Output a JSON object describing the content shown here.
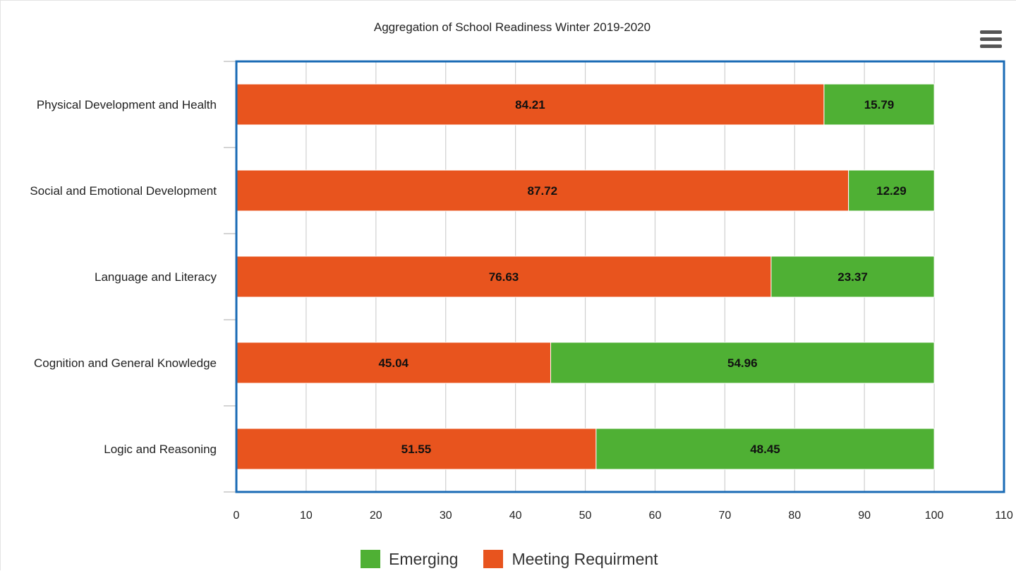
{
  "menu": {
    "icon": "hamburger-menu-icon"
  },
  "chart_data": {
    "type": "bar",
    "orientation": "horizontal",
    "stacked": true,
    "title": "Aggregation of School Readiness Winter 2019-2020",
    "categories": [
      "Physical Development and Health",
      "Social and Emotional Development",
      "Language and Literacy",
      "Cognition and General Knowledge",
      "Logic and Reasoning"
    ],
    "series": [
      {
        "name": "Meeting Requirment",
        "color": "#E8541E",
        "values": [
          84.21,
          87.72,
          76.63,
          45.04,
          51.55
        ]
      },
      {
        "name": "Emerging",
        "color": "#4FB034",
        "values": [
          15.79,
          12.29,
          23.37,
          54.96,
          48.45
        ]
      }
    ],
    "legend_order": [
      "Emerging",
      "Meeting Requirment"
    ],
    "xlim": [
      0,
      110
    ],
    "xticks": [
      0,
      10,
      20,
      30,
      40,
      50,
      60,
      70,
      80,
      90,
      100,
      110
    ],
    "grid": true,
    "legend_position": "bottom-center",
    "plot_border_color": "#1A6BB5"
  }
}
